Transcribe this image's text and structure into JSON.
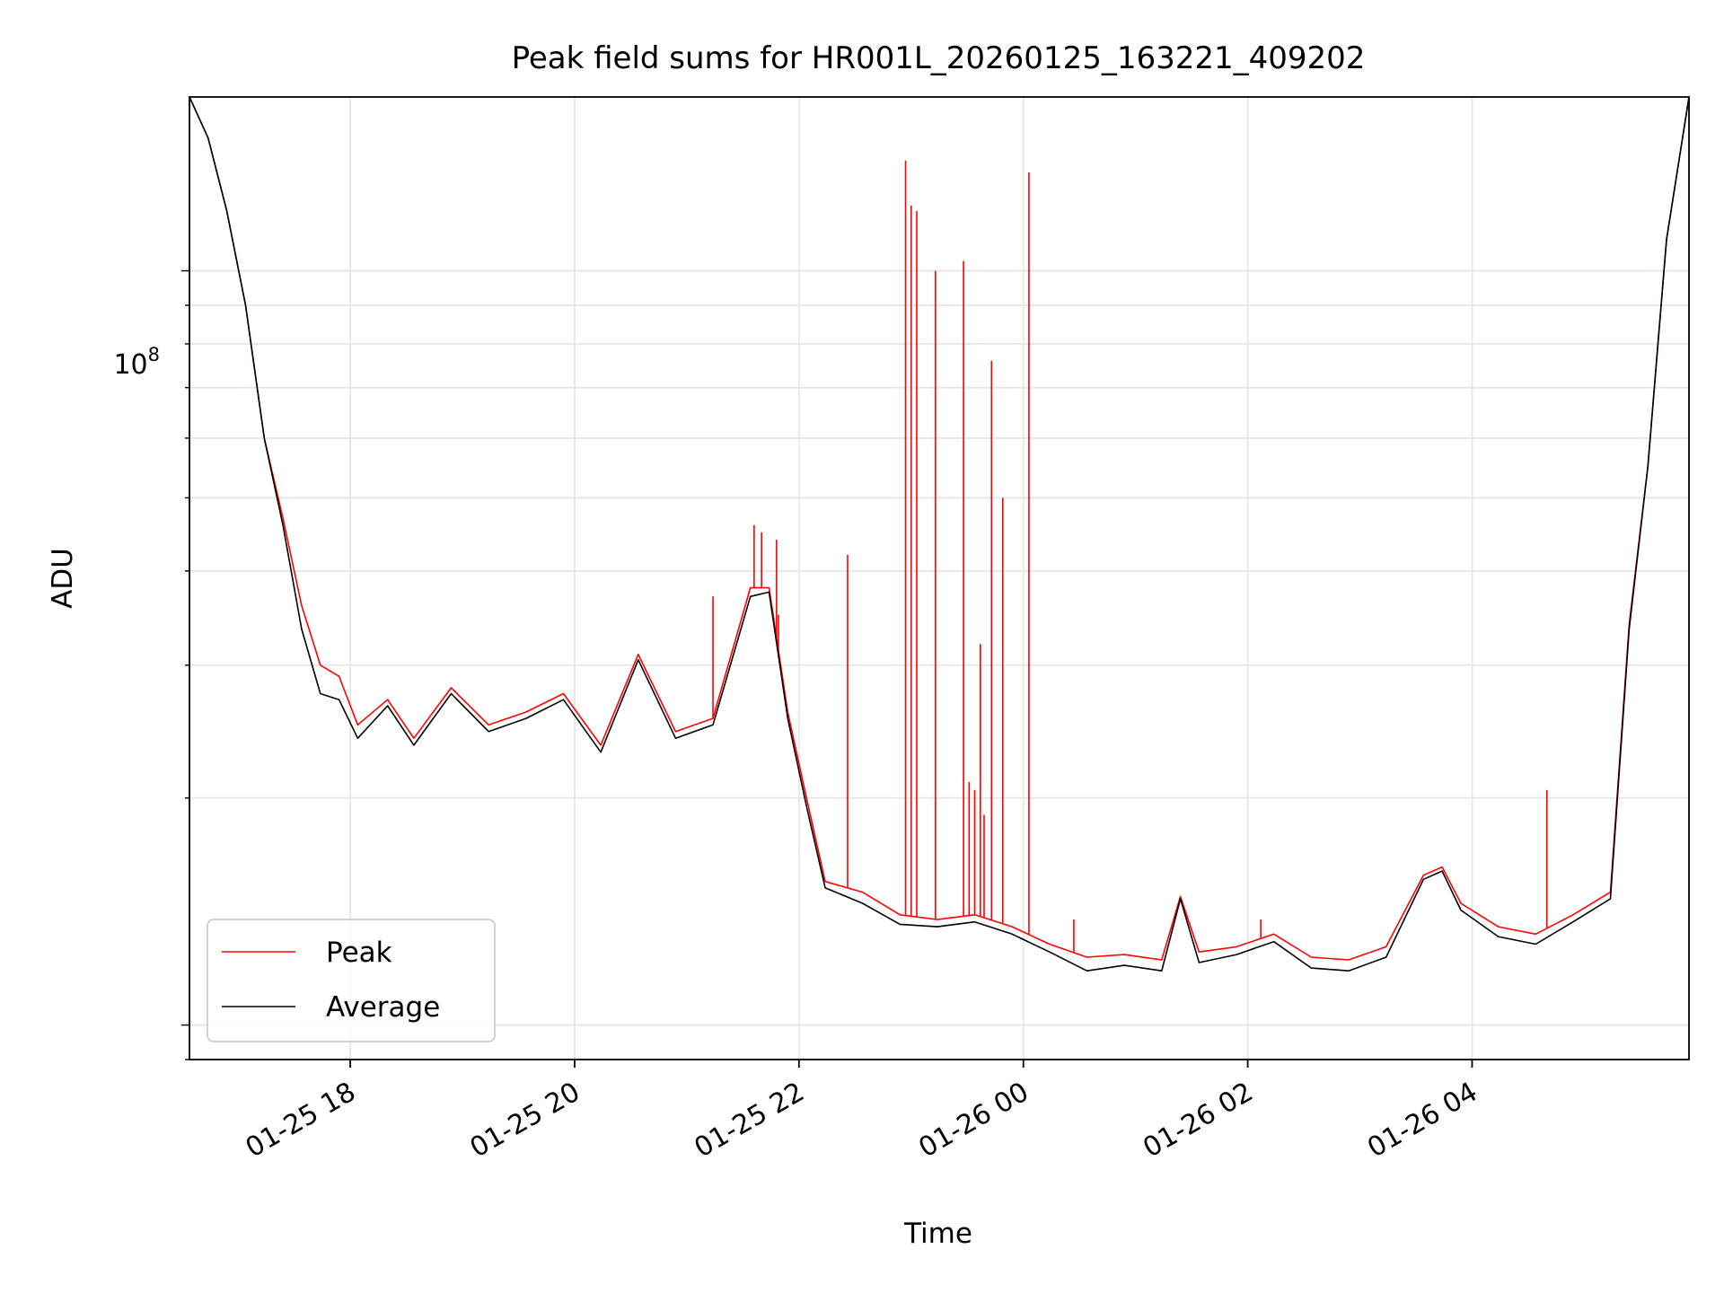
{
  "chart_data": {
    "type": "line",
    "title": "Peak field sums for HR001L_20260125_163221_409202",
    "xlabel": "Time",
    "ylabel": "ADU",
    "yscale": "log",
    "ylim": [
      9000000,
      170000000
    ],
    "xlim": [
      "2026-01-25 16:34",
      "2026-01-26 05:56"
    ],
    "x_ticks": [
      "01-25 18",
      "01-25 20",
      "01-25 22",
      "01-26 00",
      "01-26 02",
      "01-26 04"
    ],
    "y_ticks": [
      {
        "base": "10",
        "exp": "8",
        "value": 100000000
      }
    ],
    "grid": true,
    "legend_position": "lower-left",
    "series": [
      {
        "name": "Peak",
        "color": "#ff0000",
        "points": [
          [
            "2026-01-25 16:34",
            170000000
          ],
          [
            "2026-01-25 16:44",
            150000000
          ],
          [
            "2026-01-25 16:54",
            120000000
          ],
          [
            "2026-01-25 17:04",
            90000000
          ],
          [
            "2026-01-25 17:14",
            60000000
          ],
          [
            "2026-01-25 17:24",
            47000000
          ],
          [
            "2026-01-25 17:34",
            36000000
          ],
          [
            "2026-01-25 17:44",
            30000000
          ],
          [
            "2026-01-25 17:54",
            29000000
          ],
          [
            "2026-01-25 18:04",
            25000000
          ],
          [
            "2026-01-25 18:20",
            27000000
          ],
          [
            "2026-01-25 18:34",
            24000000
          ],
          [
            "2026-01-25 18:54",
            28000000
          ],
          [
            "2026-01-25 19:14",
            25000000
          ],
          [
            "2026-01-25 19:34",
            26000000
          ],
          [
            "2026-01-25 19:54",
            27500000
          ],
          [
            "2026-01-25 20:14",
            23500000
          ],
          [
            "2026-01-25 20:34",
            31000000
          ],
          [
            "2026-01-25 20:54",
            24500000
          ],
          [
            "2026-01-25 21:14",
            25500000
          ],
          [
            "2026-01-25 21:34",
            38000000
          ],
          [
            "2026-01-25 21:44",
            38000000
          ],
          [
            "2026-01-25 21:54",
            26000000
          ],
          [
            "2026-01-25 22:04",
            20000000
          ],
          [
            "2026-01-25 22:14",
            15500000
          ],
          [
            "2026-01-25 22:34",
            15000000
          ],
          [
            "2026-01-25 22:54",
            14000000
          ],
          [
            "2026-01-25 23:14",
            13800000
          ],
          [
            "2026-01-25 23:34",
            14000000
          ],
          [
            "2026-01-25 23:54",
            13500000
          ],
          [
            "2026-01-26 00:14",
            12800000
          ],
          [
            "2026-01-26 00:34",
            12300000
          ],
          [
            "2026-01-26 00:54",
            12400000
          ],
          [
            "2026-01-26 01:14",
            12200000
          ],
          [
            "2026-01-26 01:24",
            14800000
          ],
          [
            "2026-01-26 01:34",
            12500000
          ],
          [
            "2026-01-26 01:54",
            12700000
          ],
          [
            "2026-01-26 02:14",
            13200000
          ],
          [
            "2026-01-26 02:34",
            12300000
          ],
          [
            "2026-01-26 02:54",
            12200000
          ],
          [
            "2026-01-26 03:14",
            12700000
          ],
          [
            "2026-01-26 03:34",
            15800000
          ],
          [
            "2026-01-26 03:44",
            16200000
          ],
          [
            "2026-01-26 03:54",
            14500000
          ],
          [
            "2026-01-26 04:14",
            13500000
          ],
          [
            "2026-01-26 04:34",
            13200000
          ],
          [
            "2026-01-26 04:54",
            14000000
          ],
          [
            "2026-01-26 05:14",
            15000000
          ],
          [
            "2026-01-26 05:24",
            34000000
          ],
          [
            "2026-01-26 05:34",
            55000000
          ],
          [
            "2026-01-26 05:44",
            110000000
          ],
          [
            "2026-01-26 05:56",
            170000000
          ]
        ],
        "spikes": [
          [
            "2026-01-25 21:14",
            37000000
          ],
          [
            "2026-01-25 21:36",
            46000000
          ],
          [
            "2026-01-25 21:40",
            45000000
          ],
          [
            "2026-01-25 21:48",
            44000000
          ],
          [
            "2026-01-25 21:49",
            35000000
          ],
          [
            "2026-01-25 22:26",
            42000000
          ],
          [
            "2026-01-25 22:57",
            140000000
          ],
          [
            "2026-01-25 23:00",
            122000000
          ],
          [
            "2026-01-25 23:03",
            120000000
          ],
          [
            "2026-01-25 23:13",
            100000000
          ],
          [
            "2026-01-25 23:28",
            103000000
          ],
          [
            "2026-01-25 23:31",
            21000000
          ],
          [
            "2026-01-25 23:34",
            20500000
          ],
          [
            "2026-01-25 23:37",
            32000000
          ],
          [
            "2026-01-25 23:39",
            19000000
          ],
          [
            "2026-01-25 23:43",
            76000000
          ],
          [
            "2026-01-25 23:49",
            50000000
          ],
          [
            "2026-01-26 00:03",
            135000000
          ],
          [
            "2026-01-26 00:27",
            13800000
          ],
          [
            "2026-01-26 02:07",
            13800000
          ],
          [
            "2026-01-26 04:40",
            20500000
          ]
        ]
      },
      {
        "name": "Average",
        "color": "#000000",
        "points": [
          [
            "2026-01-25 16:34",
            170000000
          ],
          [
            "2026-01-25 16:44",
            150000000
          ],
          [
            "2026-01-25 16:54",
            120000000
          ],
          [
            "2026-01-25 17:04",
            90000000
          ],
          [
            "2026-01-25 17:14",
            60000000
          ],
          [
            "2026-01-25 17:24",
            46000000
          ],
          [
            "2026-01-25 17:34",
            33500000
          ],
          [
            "2026-01-25 17:44",
            27500000
          ],
          [
            "2026-01-25 17:54",
            27000000
          ],
          [
            "2026-01-25 18:04",
            24000000
          ],
          [
            "2026-01-25 18:20",
            26500000
          ],
          [
            "2026-01-25 18:34",
            23500000
          ],
          [
            "2026-01-25 18:54",
            27500000
          ],
          [
            "2026-01-25 19:14",
            24500000
          ],
          [
            "2026-01-25 19:34",
            25500000
          ],
          [
            "2026-01-25 19:54",
            27000000
          ],
          [
            "2026-01-25 20:14",
            23000000
          ],
          [
            "2026-01-25 20:34",
            30500000
          ],
          [
            "2026-01-25 20:54",
            24000000
          ],
          [
            "2026-01-25 21:14",
            25000000
          ],
          [
            "2026-01-25 21:34",
            37000000
          ],
          [
            "2026-01-25 21:44",
            37500000
          ],
          [
            "2026-01-25 21:54",
            25500000
          ],
          [
            "2026-01-25 22:04",
            19500000
          ],
          [
            "2026-01-25 22:14",
            15200000
          ],
          [
            "2026-01-25 22:34",
            14500000
          ],
          [
            "2026-01-25 22:54",
            13600000
          ],
          [
            "2026-01-25 23:14",
            13500000
          ],
          [
            "2026-01-25 23:34",
            13700000
          ],
          [
            "2026-01-25 23:54",
            13200000
          ],
          [
            "2026-01-26 00:14",
            12500000
          ],
          [
            "2026-01-26 00:34",
            11800000
          ],
          [
            "2026-01-26 00:54",
            12000000
          ],
          [
            "2026-01-26 01:14",
            11800000
          ],
          [
            "2026-01-26 01:24",
            14700000
          ],
          [
            "2026-01-26 01:34",
            12100000
          ],
          [
            "2026-01-26 01:54",
            12400000
          ],
          [
            "2026-01-26 02:14",
            12900000
          ],
          [
            "2026-01-26 02:34",
            11900000
          ],
          [
            "2026-01-26 02:54",
            11800000
          ],
          [
            "2026-01-26 03:14",
            12300000
          ],
          [
            "2026-01-26 03:34",
            15600000
          ],
          [
            "2026-01-26 03:44",
            16000000
          ],
          [
            "2026-01-26 03:54",
            14200000
          ],
          [
            "2026-01-26 04:14",
            13100000
          ],
          [
            "2026-01-26 04:34",
            12800000
          ],
          [
            "2026-01-26 04:54",
            13700000
          ],
          [
            "2026-01-26 05:14",
            14700000
          ],
          [
            "2026-01-26 05:24",
            33500000
          ],
          [
            "2026-01-26 05:34",
            55000000
          ],
          [
            "2026-01-26 05:44",
            110000000
          ],
          [
            "2026-01-26 05:56",
            170000000
          ]
        ]
      }
    ]
  }
}
